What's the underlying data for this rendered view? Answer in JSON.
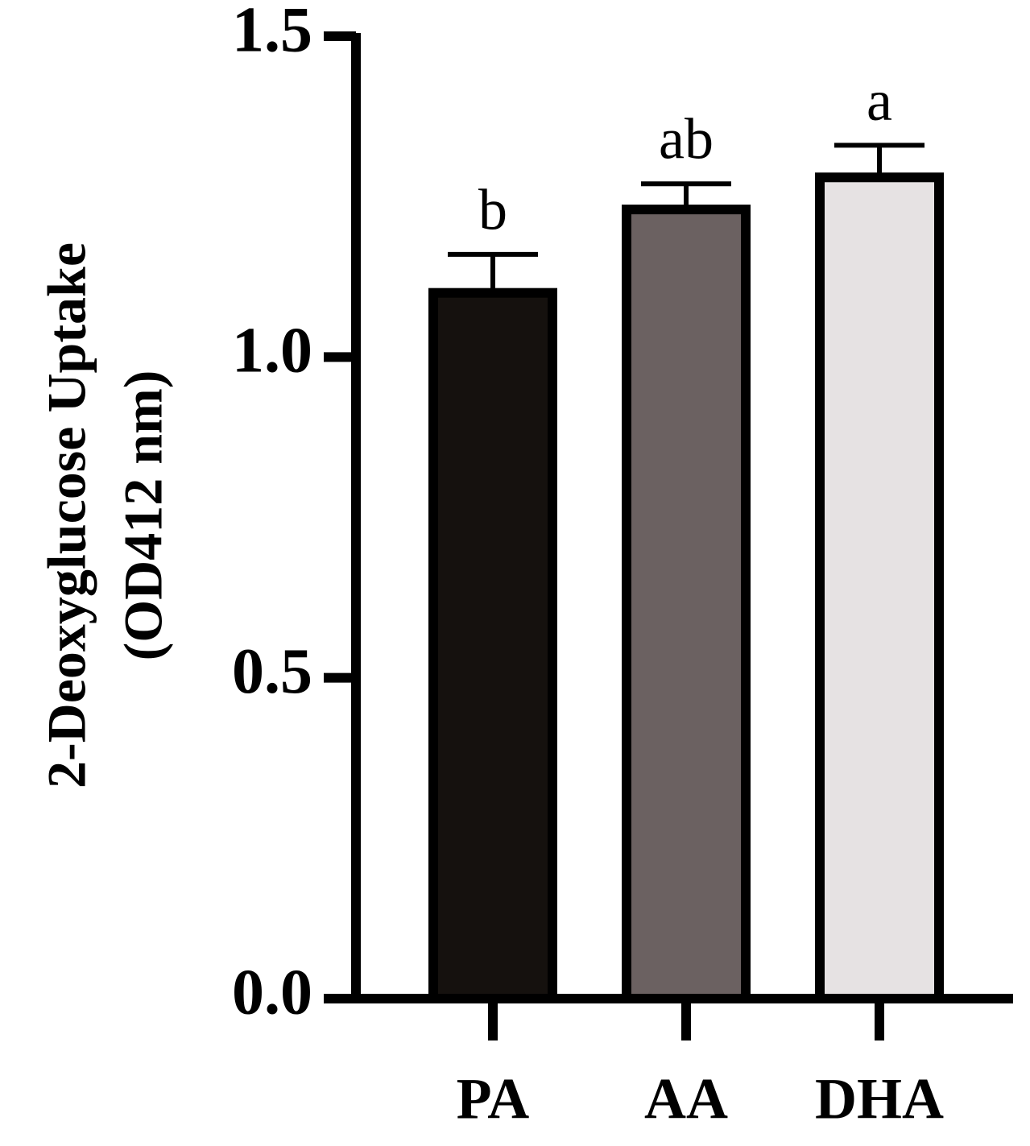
{
  "chart_data": {
    "type": "bar",
    "ylabel": [
      "2-Deoxyglucose Uptake",
      "(OD412 nm)"
    ],
    "categories": [
      "PA",
      "AA",
      "DHA"
    ],
    "values": [
      1.1,
      1.23,
      1.28
    ],
    "errors": [
      0.06,
      0.04,
      0.05
    ],
    "annotations": [
      "b",
      "ab",
      "a"
    ],
    "colors": [
      "#15110e",
      "#6b6161",
      "#e6e2e3"
    ],
    "ylim": [
      0,
      1.5
    ],
    "yticks": [
      {
        "value": 0,
        "label": "0.0"
      },
      0.5,
      {
        "value": 1,
        "label": "1.0"
      },
      1.5
    ],
    "grid": false
  }
}
